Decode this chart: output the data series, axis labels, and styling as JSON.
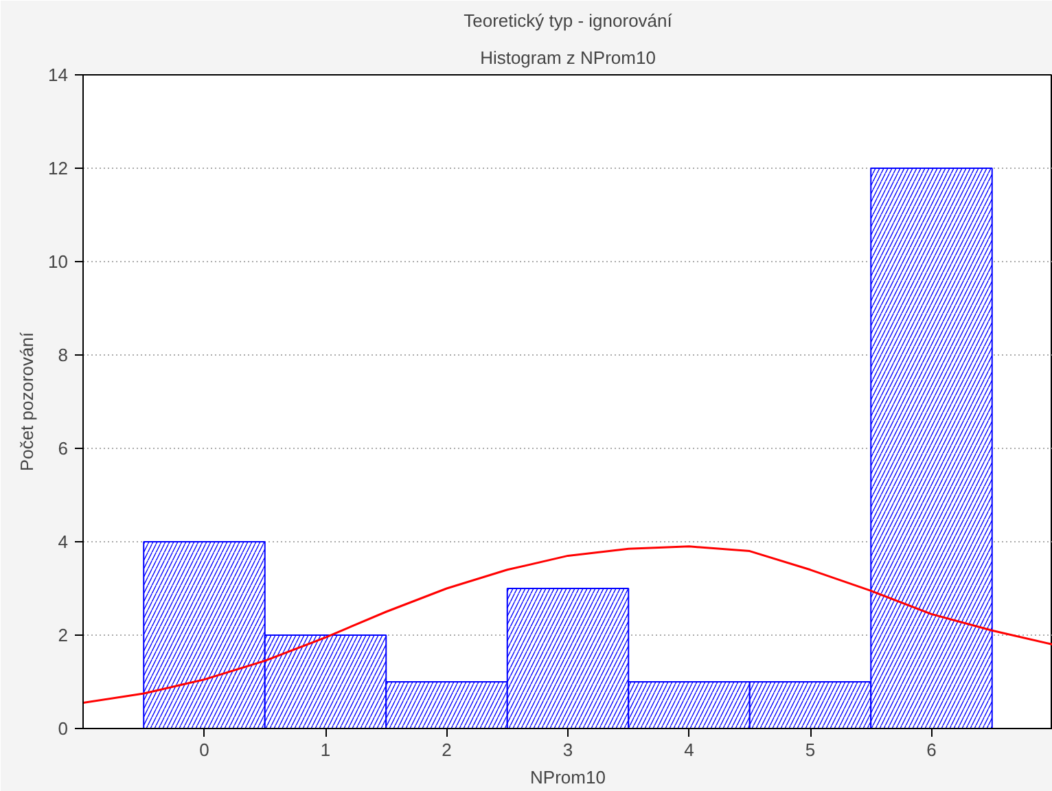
{
  "chart_data": {
    "type": "histogram",
    "title": "Teoretický typ - ignorování",
    "subtitle": "Histogram z NProm10",
    "xlabel": "NProm10",
    "ylabel": "Počet pozorování",
    "bins": [
      -0.5,
      0.5,
      1.5,
      2.5,
      3.5,
      4.5,
      5.5,
      6.5
    ],
    "values": [
      4,
      2,
      1,
      3,
      1,
      1,
      12
    ],
    "color": "#0000ff",
    "series": [
      {
        "type": "line",
        "color": "#ff0000",
        "x": [
          -1,
          -0.5,
          0,
          0.5,
          1,
          1.5,
          2,
          2.5,
          3,
          3.5,
          4,
          4.5,
          5,
          5.5,
          6,
          6.5,
          7
        ],
        "values": [
          0.55,
          0.75,
          1.05,
          1.45,
          1.95,
          2.5,
          3.0,
          3.4,
          3.7,
          3.85,
          3.9,
          3.8,
          3.4,
          2.95,
          2.45,
          2.1,
          1.8
        ]
      }
    ],
    "xlim": [
      -1,
      7
    ],
    "xticks": [
      0,
      1,
      2,
      3,
      4,
      5,
      6
    ],
    "ylim": [
      0,
      14
    ],
    "yticks": [
      0,
      2,
      4,
      6,
      8,
      10,
      12,
      14
    ],
    "grid": "y"
  }
}
